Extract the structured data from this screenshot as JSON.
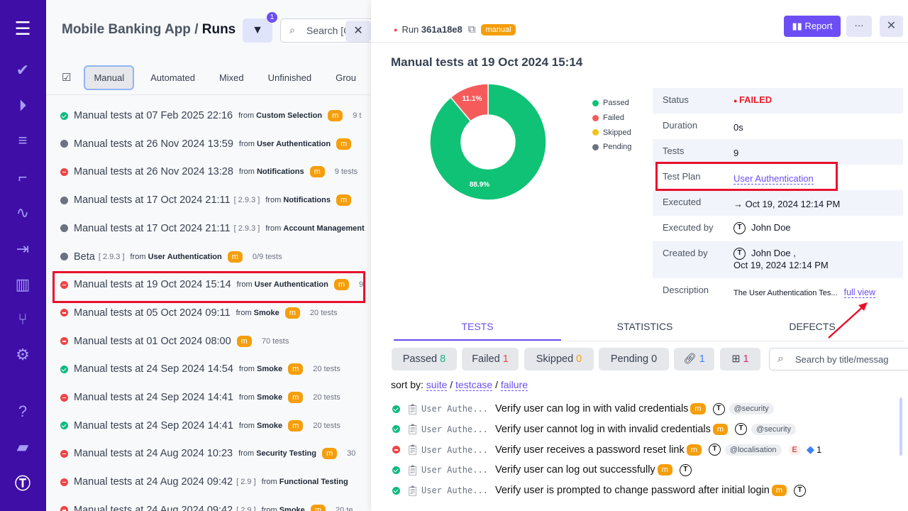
{
  "sidebar": {
    "icons": [
      "menu-icon",
      "check-icon",
      "play-icon",
      "list-check-icon",
      "steps-icon",
      "pulse-icon",
      "import-icon",
      "analytics-icon",
      "branch-icon",
      "settings-icon",
      "help-icon",
      "folder-icon",
      "user-logo-icon"
    ]
  },
  "header": {
    "project": "Mobile Banking App",
    "separator": "/",
    "page": "Runs",
    "filter_count": "1",
    "search_placeholder": "Search [Ct"
  },
  "tabs": [
    "Manual",
    "Automated",
    "Mixed",
    "Unfinished",
    "Grou"
  ],
  "runs": [
    {
      "status": "passed",
      "title": "Manual tests at 07 Feb 2025 22:16",
      "from_label": "from",
      "source": "Custom Selection",
      "badge": "m",
      "count": "9 t"
    },
    {
      "status": "pending",
      "title": "Manual tests at 26 Nov 2024 13:59",
      "from_label": "from",
      "source": "User Authentication",
      "badge": "m",
      "count": ""
    },
    {
      "status": "failed",
      "title": "Manual tests at 26 Nov 2024 13:28",
      "from_label": "from",
      "source": "Notifications",
      "badge": "m",
      "count": "9 tests"
    },
    {
      "status": "pending",
      "title": "Manual tests at 17 Oct 2024 21:11",
      "version": "[ 2.9.3 ]",
      "from_label": "from",
      "source": "Notifications",
      "badge": "m",
      "count": ""
    },
    {
      "status": "pending",
      "title": "Manual tests at 17 Oct 2024 21:11",
      "version": "[ 2.9.3 ]",
      "from_label": "from",
      "source": "Account Management",
      "count": ""
    },
    {
      "status": "pending",
      "title": "Beta",
      "version": "[ 2.9.3 ]",
      "from_label": "from",
      "source": "User Authentication",
      "badge": "m",
      "count": "0/9 tests"
    },
    {
      "status": "failed",
      "title": "Manual tests at 19 Oct 2024 15:14",
      "from_label": "from",
      "source": "User Authentication",
      "badge": "m",
      "count": "9"
    },
    {
      "status": "failed",
      "title": "Manual tests at 05 Oct 2024 09:11",
      "from_label": "from",
      "source": "Smoke",
      "badge": "m",
      "count": "20 tests"
    },
    {
      "status": "failed",
      "title": "Manual tests at 01 Oct 2024 08:00",
      "badge": "m",
      "count": "70 tests"
    },
    {
      "status": "passed",
      "title": "Manual tests at 24 Sep 2024 14:54",
      "from_label": "from",
      "source": "Smoke",
      "badge": "m",
      "count": "20 tests"
    },
    {
      "status": "failed",
      "title": "Manual tests at 24 Sep 2024 14:41",
      "from_label": "from",
      "source": "Smoke",
      "badge": "m",
      "count": "20 tests"
    },
    {
      "status": "passed",
      "title": "Manual tests at 24 Sep 2024 14:41",
      "from_label": "from",
      "source": "Smoke",
      "badge": "m",
      "count": "20 tests"
    },
    {
      "status": "failed",
      "title": "Manual tests at 24 Aug 2024 10:23",
      "from_label": "from",
      "source": "Security Testing",
      "badge": "m",
      "count": "30"
    },
    {
      "status": "failed",
      "title": "Manual tests at 24 Aug 2024 09:42",
      "version": "[ 2.9 ]",
      "from_label": "from",
      "source": "Functional Testing",
      "count": ""
    },
    {
      "status": "failed",
      "title": "Manual tests at 24 Aug 2024 09:42",
      "version": "[ 2.9 ]",
      "from_label": "from",
      "source": "Smoke",
      "badge": "m",
      "count": "20 te"
    }
  ],
  "detail": {
    "run_label": "Run",
    "run_id": "361a18e8",
    "type_tag": "manual",
    "report_label": "Report",
    "more_label": "···",
    "close_label": "✕",
    "title": "Manual tests at 19 Oct 2024 15:14",
    "chart": {
      "slices": [
        {
          "label": "Passed",
          "percent": 88.9,
          "display": "88.9%",
          "color": "#10c275"
        },
        {
          "label": "Failed",
          "percent": 11.1,
          "display": "11.1%",
          "color": "#f55b5b"
        }
      ],
      "legend": [
        {
          "label": "Passed",
          "color": "#10c275"
        },
        {
          "label": "Failed",
          "color": "#f55b5b"
        },
        {
          "label": "Skipped",
          "color": "#f2c419"
        },
        {
          "label": "Pending",
          "color": "#6b7280"
        }
      ]
    },
    "fields": {
      "status_k": "Status",
      "status_v": "FAILED",
      "duration_k": "Duration",
      "duration_v": "0s",
      "tests_k": "Tests",
      "tests_v": "9",
      "plan_k": "Test Plan",
      "plan_v": "User Authentication",
      "executed_k": "Executed",
      "executed_v": "→ Oct 19, 2024 12:14 PM",
      "executed_by_k": "Executed by",
      "executed_by_v": "John Doe",
      "created_by_k": "Created by",
      "created_by_v": "John Doe ,",
      "created_at": "Oct 19, 2024 12:14 PM",
      "description_k": "Description",
      "description_v": "The User Authentication Tes...",
      "full_view": "full view"
    },
    "tabs": [
      "TESTS",
      "STATISTICS",
      "DEFECTS"
    ],
    "filters": {
      "passed": "Passed",
      "passed_n": "8",
      "failed": "Failed",
      "failed_n": "1",
      "skipped": "Skipped",
      "skipped_n": "0",
      "pending": "Pending",
      "pending_n": "0",
      "links_n": "1",
      "notes_n": "1",
      "search_placeholder": "Search by title/messag"
    },
    "sort": {
      "label": "sort by:",
      "options": [
        "suite",
        "testcase",
        "failure"
      ]
    },
    "tests": [
      {
        "status": "passed",
        "suite": "User Authe...",
        "title": "Verify user can log in with valid credentials",
        "badge": "m",
        "tag": "@security"
      },
      {
        "status": "passed",
        "suite": "User Authe...",
        "title": "Verify user cannot log in with invalid credentials",
        "badge": "m",
        "tag": "@security"
      },
      {
        "status": "failed",
        "suite": "User Authe...",
        "title": "Verify user receives a password reset link",
        "badge": "m",
        "tag": "@localisation",
        "error": "E",
        "jira_count": "1"
      },
      {
        "status": "passed",
        "suite": "User Authe...",
        "title": "Verify user can log out successfully",
        "badge": "m"
      },
      {
        "status": "passed",
        "suite": "User Authe...",
        "title": "Verify user is prompted to change password after initial login",
        "badge": "m"
      }
    ]
  }
}
